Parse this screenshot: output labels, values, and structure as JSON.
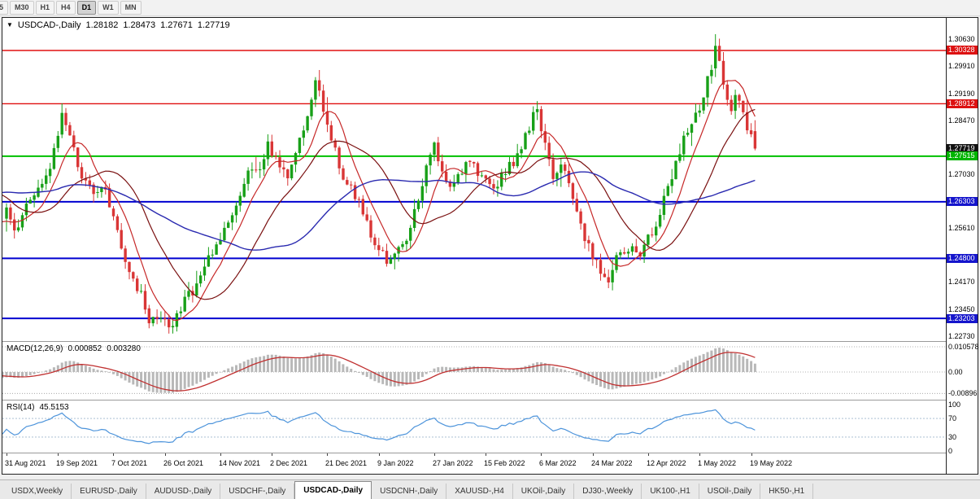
{
  "toolbar": {
    "timeframes": [
      {
        "label": "5",
        "active": false
      },
      {
        "label": "M30",
        "active": false
      },
      {
        "label": "H1",
        "active": false
      },
      {
        "label": "H4",
        "active": false
      },
      {
        "label": "D1",
        "active": true
      },
      {
        "label": "W1",
        "active": false
      },
      {
        "label": "MN",
        "active": false
      }
    ]
  },
  "chart": {
    "symbol_title": "USDCAD-,Daily",
    "ohlc": {
      "open": "1.28182",
      "high": "1.28473",
      "low": "1.27671",
      "close": "1.27719"
    }
  },
  "macd": {
    "label": "MACD(12,26,9)",
    "value_main": "0.000852",
    "value_signal": "0.003280",
    "axis_labels": [
      {
        "text": "0.010578",
        "value": 0.010578
      },
      {
        "text": "0.00",
        "value": 0
      },
      {
        "text": "-0.00896",
        "value": -0.00896
      }
    ]
  },
  "rsi": {
    "label": "RSI(14)",
    "value": "45.5153",
    "axis_labels": [
      {
        "text": "100",
        "value": 100
      },
      {
        "text": "70",
        "value": 70
      },
      {
        "text": "30",
        "value": 30
      },
      {
        "text": "0",
        "value": 0
      }
    ]
  },
  "price_axis": {
    "plain_labels": [
      {
        "text": "1.30630",
        "price": 1.3063
      },
      {
        "text": "1.29910",
        "price": 1.2991
      },
      {
        "text": "1.29190",
        "price": 1.2919
      },
      {
        "text": "1.28470",
        "price": 1.2847
      },
      {
        "text": "1.27030",
        "price": 1.2703
      },
      {
        "text": "1.25610",
        "price": 1.2561
      },
      {
        "text": "1.24170",
        "price": 1.2417
      },
      {
        "text": "1.23450",
        "price": 1.2345
      },
      {
        "text": "1.22730",
        "price": 1.2273
      }
    ],
    "badges": [
      {
        "text": "1.30328",
        "price": 1.30328,
        "bg": "#DD1111"
      },
      {
        "text": "1.28912",
        "price": 1.28912,
        "bg": "#DD1111"
      },
      {
        "text": "1.27719",
        "price": 1.27719,
        "bg": "#111111"
      },
      {
        "text": "1.27515",
        "price": 1.27515,
        "bg": "#00B400"
      },
      {
        "text": "1.26303",
        "price": 1.26303,
        "bg": "#1515CC"
      },
      {
        "text": "1.24800",
        "price": 1.248,
        "bg": "#1515CC"
      },
      {
        "text": "1.23203",
        "price": 1.23203,
        "bg": "#1515CC"
      }
    ]
  },
  "h_lines": [
    {
      "price": 1.30328,
      "color": "#E01010",
      "width": 1.4
    },
    {
      "price": 1.28912,
      "color": "#E01010",
      "width": 1.4
    },
    {
      "price": 1.27515,
      "color": "#00C000",
      "width": 2
    },
    {
      "price": 1.26303,
      "color": "#0000D0",
      "width": 2
    },
    {
      "price": 1.248,
      "color": "#0000D0",
      "width": 2
    },
    {
      "price": 1.23203,
      "color": "#0000D0",
      "width": 2
    }
  ],
  "x_axis": {
    "labels": [
      {
        "text": "31 Aug 2021",
        "day": 0
      },
      {
        "text": "19 Sep 2021",
        "day": 13
      },
      {
        "text": "7 Oct 2021",
        "day": 27
      },
      {
        "text": "26 Oct 2021",
        "day": 40
      },
      {
        "text": "14 Nov 2021",
        "day": 54
      },
      {
        "text": "2 Dec 2021",
        "day": 67
      },
      {
        "text": "21 Dec 2021",
        "day": 81
      },
      {
        "text": "9 Jan 2022",
        "day": 94
      },
      {
        "text": "27 Jan 2022",
        "day": 108
      },
      {
        "text": "15 Feb 2022",
        "day": 121
      },
      {
        "text": "6 Mar 2022",
        "day": 135
      },
      {
        "text": "24 Mar 2022",
        "day": 148
      },
      {
        "text": "12 Apr 2022",
        "day": 162
      },
      {
        "text": "1 May 2022",
        "day": 175
      },
      {
        "text": "19 May 2022",
        "day": 188
      }
    ]
  },
  "tabs": [
    {
      "label": "USDX,Weekly",
      "active": false
    },
    {
      "label": "EURUSD-,Daily",
      "active": false
    },
    {
      "label": "AUDUSD-,Daily",
      "active": false
    },
    {
      "label": "USDCHF-,Daily",
      "active": false
    },
    {
      "label": "USDCAD-,Daily",
      "active": true
    },
    {
      "label": "USDCNH-,Daily",
      "active": false
    },
    {
      "label": "XAUUSD-,H4",
      "active": false
    },
    {
      "label": "UKOil-,Daily",
      "active": false
    },
    {
      "label": "DJ30-,Weekly",
      "active": false
    },
    {
      "label": "UK100-,H1",
      "active": false
    },
    {
      "label": "USOil-,Daily",
      "active": false
    },
    {
      "label": "HK50-,H1",
      "active": false
    }
  ],
  "chart_data": {
    "type": "candlestick",
    "symbol": "USDCAD",
    "timeframe": "Daily",
    "visible_candles": 190,
    "pre_candles": 60,
    "candle_spacing_px": 4.87,
    "price_path_anchors": [
      [
        -60,
        1.248
      ],
      [
        -45,
        1.2575
      ],
      [
        -30,
        1.269
      ],
      [
        -20,
        1.276
      ],
      [
        -12,
        1.265
      ],
      [
        -5,
        1.256
      ],
      [
        0,
        1.2605
      ],
      [
        2,
        1.255
      ],
      [
        5,
        1.2625
      ],
      [
        8,
        1.2665
      ],
      [
        11,
        1.2705
      ],
      [
        14,
        1.287
      ],
      [
        16,
        1.28
      ],
      [
        19,
        1.27
      ],
      [
        22,
        1.264
      ],
      [
        25,
        1.2665
      ],
      [
        28,
        1.255
      ],
      [
        31,
        1.245
      ],
      [
        34,
        1.238
      ],
      [
        36,
        1.231
      ],
      [
        39,
        1.2335
      ],
      [
        41,
        1.229
      ],
      [
        44,
        1.235
      ],
      [
        47,
        1.2395
      ],
      [
        50,
        1.247
      ],
      [
        53,
        1.252
      ],
      [
        56,
        1.2565
      ],
      [
        58,
        1.262
      ],
      [
        61,
        1.27
      ],
      [
        64,
        1.273
      ],
      [
        66,
        1.278
      ],
      [
        68,
        1.274
      ],
      [
        71,
        1.2705
      ],
      [
        73,
        1.276
      ],
      [
        76,
        1.286
      ],
      [
        78,
        1.2945
      ],
      [
        80,
        1.288
      ],
      [
        82,
        1.28
      ],
      [
        84,
        1.2725
      ],
      [
        86,
        1.268
      ],
      [
        88,
        1.265
      ],
      [
        90,
        1.26
      ],
      [
        93,
        1.252
      ],
      [
        96,
        1.247
      ],
      [
        99,
        1.2505
      ],
      [
        102,
        1.256
      ],
      [
        104,
        1.264
      ],
      [
        106,
        1.272
      ],
      [
        108,
        1.278
      ],
      [
        110,
        1.2705
      ],
      [
        112,
        1.267
      ],
      [
        114,
        1.27
      ],
      [
        117,
        1.274
      ],
      [
        120,
        1.27
      ],
      [
        123,
        1.266
      ],
      [
        126,
        1.271
      ],
      [
        129,
        1.2755
      ],
      [
        132,
        1.283
      ],
      [
        134,
        1.2885
      ],
      [
        136,
        1.278
      ],
      [
        138,
        1.27
      ],
      [
        140,
        1.273
      ],
      [
        142,
        1.269
      ],
      [
        144,
        1.26
      ],
      [
        146,
        1.253
      ],
      [
        148,
        1.248
      ],
      [
        150,
        1.245
      ],
      [
        152,
        1.2415
      ],
      [
        154,
        1.25
      ],
      [
        156,
        1.248
      ],
      [
        158,
        1.2525
      ],
      [
        160,
        1.249
      ],
      [
        162,
        1.2535
      ],
      [
        164,
        1.2565
      ],
      [
        166,
        1.264
      ],
      [
        168,
        1.27
      ],
      [
        170,
        1.2765
      ],
      [
        172,
        1.2825
      ],
      [
        174,
        1.2865
      ],
      [
        176,
        1.2905
      ],
      [
        178,
        1.2995
      ],
      [
        179,
        1.305
      ],
      [
        180,
        1.3
      ],
      [
        181,
        1.295
      ],
      [
        182,
        1.2905
      ],
      [
        183,
        1.288
      ],
      [
        184,
        1.2925
      ],
      [
        185,
        1.289
      ],
      [
        186,
        1.2855
      ],
      [
        187,
        1.2825
      ],
      [
        188,
        1.2795
      ],
      [
        189,
        1.2772
      ]
    ],
    "noise": {
      "close": 0.003,
      "wick": 0.0022,
      "seed": 12
    },
    "overrides": [
      {
        "day": 14,
        "high": 1.2892
      },
      {
        "day": 78,
        "high": 1.2962
      },
      {
        "day": 134,
        "high": 1.2898
      },
      {
        "day": 179,
        "open": 1.2985,
        "high": 1.3076,
        "low": 1.2962,
        "close": 1.3045
      },
      {
        "day": 189,
        "open": 1.28182,
        "high": 1.28473,
        "low": 1.27671,
        "close": 1.27719
      }
    ],
    "moving_averages": [
      {
        "period": 8,
        "color": "#C62828",
        "width": 1.2
      },
      {
        "period": 21,
        "color": "#7A1010",
        "width": 1.2
      },
      {
        "period": 45,
        "color": "#2A2AB0",
        "width": 1.4
      }
    ],
    "macd": {
      "fast": 12,
      "slow": 26,
      "signal": 9,
      "histogram_color": "#B8B8B8",
      "signal_color": "#C03030",
      "axis_max": 0.010578,
      "axis_min": -0.00896
    },
    "rsi": {
      "period": 14,
      "color": "#4D94DB",
      "levels": [
        70,
        30
      ]
    },
    "candle_colors": {
      "up": "#18A018",
      "down": "#D93636"
    },
    "price_axis_range": {
      "top_label": 1.3063,
      "bottom_label": 1.2273,
      "step": 0.0072
    }
  }
}
